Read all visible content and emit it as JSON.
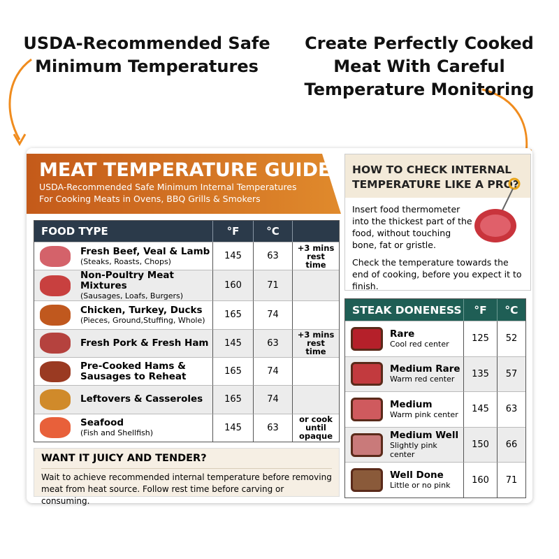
{
  "callouts": {
    "left": "USDA-Recommended Safe Minimum Temperatures",
    "right": "Create Perfectly Cooked Meat With Careful Temperature Monitoring"
  },
  "guide": {
    "title": "MEAT TEMPERATURE GUIDE",
    "subtitle": [
      "USDA-Recommended Safe Minimum Internal Temperatures",
      "For Cooking Meats in Ovens, BBQ Grills & Smokers"
    ],
    "table": {
      "header": [
        "FOOD TYPE",
        "°F",
        "°C"
      ],
      "rows": [
        {
          "name": "Fresh Beef, Veal & Lamb",
          "detail": "(Steaks, Roasts, Chops)",
          "f": 145,
          "c": 63,
          "note": "+3 mins rest time"
        },
        {
          "name": "Non-Poultry Meat Mixtures",
          "detail": "(Sausages, Loafs, Burgers)",
          "f": 160,
          "c": 71
        },
        {
          "name": "Chicken, Turkey, Ducks",
          "detail": "(Pieces, Ground,Stuffing, Whole)",
          "f": 165,
          "c": 74
        },
        {
          "name": "Fresh Pork & Fresh Ham",
          "f": 145,
          "c": 63,
          "note": "+3 mins rest time"
        },
        {
          "name": "Pre-Cooked Hams & Sausages to Reheat",
          "f": 165,
          "c": 74
        },
        {
          "name": "Leftovers & Casseroles",
          "f": 165,
          "c": 74
        },
        {
          "name": "Seafood",
          "detail": "(Fish and Shellfish)",
          "f": 145,
          "c": 63,
          "note": "or cook until opaque"
        }
      ]
    }
  },
  "tip": {
    "title": "WANT IT JUICY AND TENDER?",
    "text": "Wait to achieve recommended internal temperature before removing meat from heat source. Follow rest time before carving or consuming."
  },
  "check": {
    "title": "HOW TO CHECK INTERNAL TEMPERATURE LIKE A PRO?",
    "paragraphs": [
      "Insert food thermometer into the thickest part of the food, without touching bone, fat or gristle.",
      "Check the temperature towards the end of cooking, before you expect it to finish."
    ]
  },
  "steak": {
    "header": [
      "STEAK DONENESS",
      "°F",
      "°C"
    ],
    "rows": [
      {
        "name": "Rare",
        "detail": "Cool red center",
        "f": 125,
        "c": 52
      },
      {
        "name": "Medium Rare",
        "detail": "Warm red center",
        "f": 135,
        "c": 57
      },
      {
        "name": "Medium",
        "detail": "Warm pink center",
        "f": 145,
        "c": 63
      },
      {
        "name": "Medium Well",
        "detail": "Slightly pink center",
        "f": 150,
        "c": 66
      },
      {
        "name": "Well Done",
        "detail": "Little or no pink",
        "f": 160,
        "c": 71
      }
    ]
  }
}
